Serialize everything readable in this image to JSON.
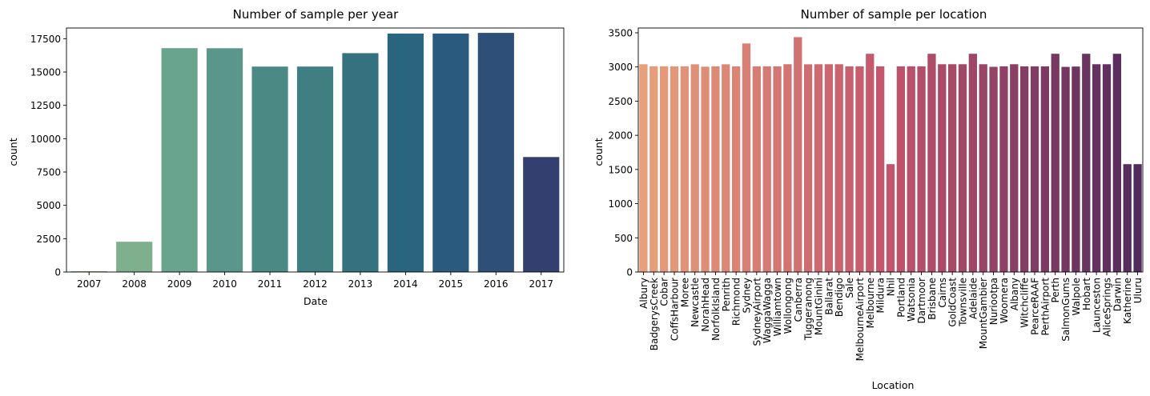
{
  "chart_data": [
    {
      "type": "bar",
      "title": "Number of sample per year",
      "xlabel": "Date",
      "ylabel": "count",
      "ylim": [
        0,
        18300
      ],
      "yticks": [
        "0",
        "2500",
        "5000",
        "7500",
        "10000",
        "12500",
        "15000",
        "17500"
      ],
      "categories": [
        "2007",
        "2008",
        "2009",
        "2010",
        "2011",
        "2012",
        "2013",
        "2014",
        "2015",
        "2016",
        "2017"
      ],
      "values": [
        61,
        2270,
        16789,
        16782,
        15407,
        15409,
        16415,
        17885,
        17885,
        17934,
        8623
      ],
      "colors": [
        "#8fbc96",
        "#7fb08d",
        "#69a48e",
        "#5a968a",
        "#4b8985",
        "#3f7f82",
        "#33727e",
        "#2a6580",
        "#2a5a7d",
        "#2d4f78",
        "#323f6f"
      ]
    },
    {
      "type": "bar",
      "title": "Number of sample per location",
      "xlabel": "Location",
      "ylabel": "count",
      "ylim": [
        0,
        3570
      ],
      "yticks": [
        "0",
        "500",
        "1000",
        "1500",
        "2000",
        "2500",
        "3000",
        "3500"
      ],
      "categories": [
        "Albury",
        "BadgerysCreek",
        "Cobar",
        "CoffsHarbour",
        "Moree",
        "Newcastle",
        "NorahHead",
        "NorfolkIsland",
        "Penrith",
        "Richmond",
        "Sydney",
        "SydneyAirport",
        "WaggaWagga",
        "Williamtown",
        "Wollongong",
        "Canberra",
        "Tuggeranong",
        "MountGinini",
        "Ballarat",
        "Bendigo",
        "Sale",
        "MelbourneAirport",
        "Melbourne",
        "Mildura",
        "Nhil",
        "Portland",
        "Watsonia",
        "Dartmoor",
        "Brisbane",
        "Cairns",
        "GoldCoast",
        "Townsville",
        "Adelaide",
        "MountGambier",
        "Nuriootpa",
        "Woomera",
        "Albany",
        "Witchcliffe",
        "PearceRAAF",
        "PerthAirport",
        "Perth",
        "SalmonGums",
        "Walpole",
        "Hobart",
        "Launceston",
        "AliceSprings",
        "Darwin",
        "Katherine",
        "Uluru"
      ],
      "values": [
        3040,
        3009,
        3009,
        3009,
        3009,
        3039,
        3004,
        3009,
        3039,
        3009,
        3344,
        3009,
        3009,
        3009,
        3040,
        3436,
        3039,
        3040,
        3040,
        3040,
        3009,
        3009,
        3193,
        3009,
        1578,
        3009,
        3009,
        3009,
        3193,
        3040,
        3040,
        3040,
        3193,
        3040,
        3002,
        3009,
        3040,
        3009,
        3009,
        3009,
        3193,
        3001,
        3006,
        3193,
        3040,
        3040,
        3193,
        1578,
        1578
      ],
      "color_start": "#e7a07b",
      "color_mid": "#c2546c",
      "color_end": "#522b5c"
    }
  ]
}
